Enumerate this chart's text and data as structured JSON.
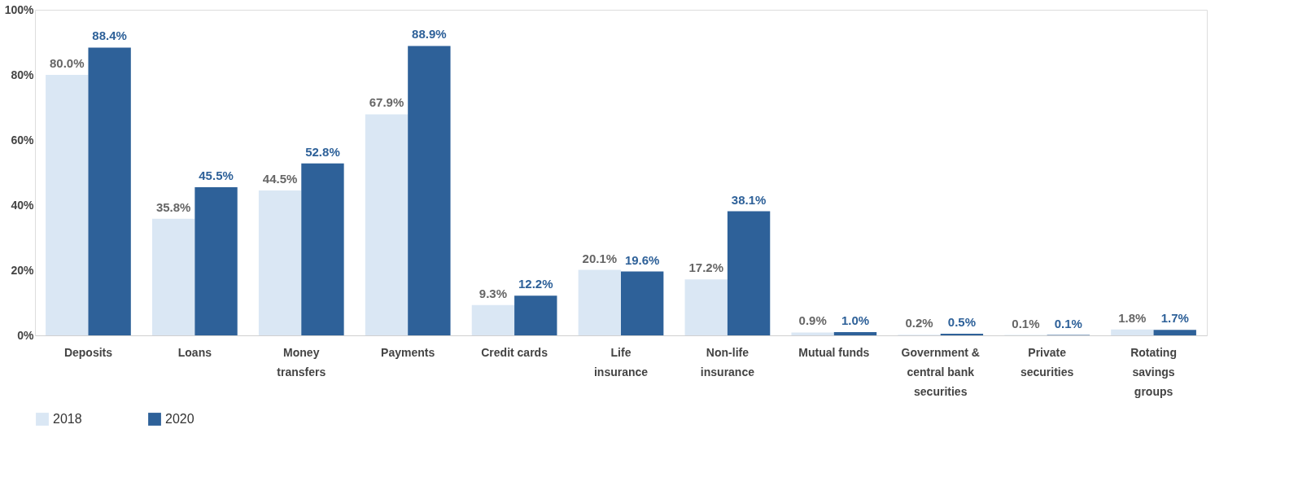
{
  "chart_data": {
    "type": "bar",
    "categories": [
      "Deposits",
      "Loans",
      "Money transfers",
      "Payments",
      "Credit cards",
      "Life insurance",
      "Non-life insurance",
      "Mutual funds",
      "Government & central bank securities",
      "Private securities",
      "Rotating savings groups"
    ],
    "series": [
      {
        "name": "2018",
        "color": "#dae7f4",
        "values": [
          80.0,
          35.8,
          44.5,
          67.9,
          9.3,
          20.1,
          17.2,
          0.9,
          0.2,
          0.1,
          1.8
        ],
        "value_labels": [
          "80.0%",
          "35.8%",
          "44.5%",
          "67.9%",
          "9.3%",
          "20.1%",
          "17.2%",
          "0.9%",
          "0.2%",
          "0.1%",
          "1.8%"
        ]
      },
      {
        "name": "2020",
        "color": "#2e6199",
        "values": [
          88.4,
          45.5,
          52.8,
          88.9,
          12.2,
          19.6,
          38.1,
          1.0,
          0.5,
          0.1,
          1.7
        ],
        "value_labels": [
          "88.4%",
          "45.5%",
          "52.8%",
          "88.9%",
          "12.2%",
          "19.6%",
          "38.1%",
          "1.0%",
          "0.5%",
          "0.1%",
          "1.7%"
        ]
      }
    ],
    "ylim": [
      0,
      100
    ],
    "yticks": [
      {
        "value": 0,
        "label": "0%"
      },
      {
        "value": 20,
        "label": "20%"
      },
      {
        "value": 40,
        "label": "40%"
      },
      {
        "value": 60,
        "label": "60%"
      },
      {
        "value": 80,
        "label": "80%"
      },
      {
        "value": 100,
        "label": "100%"
      }
    ],
    "grid": false,
    "legend": "bottom"
  }
}
